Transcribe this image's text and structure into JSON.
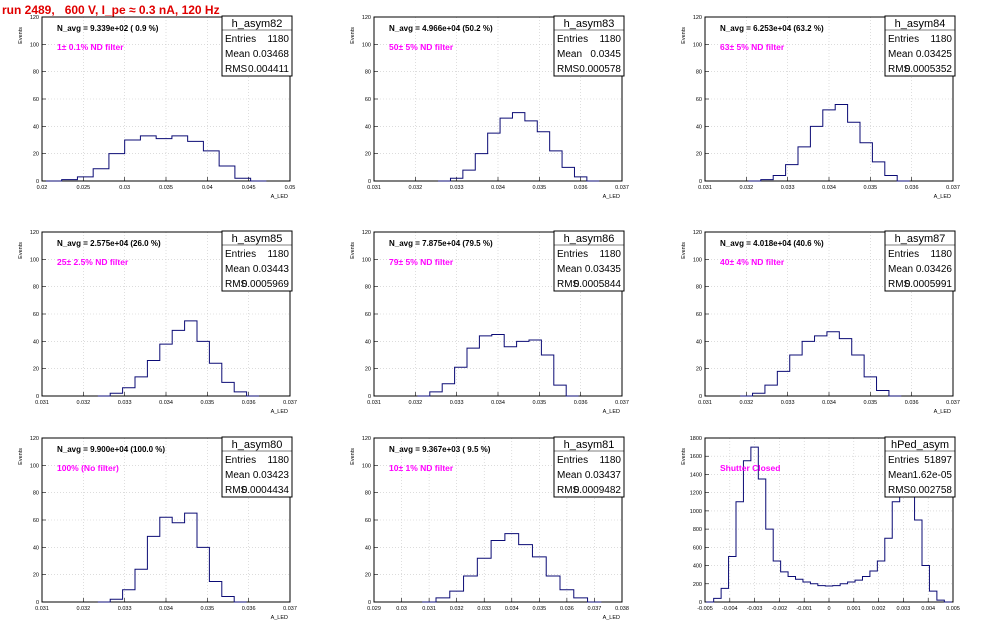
{
  "header": {
    "run_title": "run 2489,   600 V, I_pe ≈ 0.3 nA, 120 Hz"
  },
  "labels": {
    "entries": "Entries",
    "mean": "Mean",
    "rms": "RMS"
  },
  "colors": {
    "histogram": "#0b0b75",
    "note": "#ff00ff",
    "title": "#e00000"
  },
  "chart_data": [
    {
      "type": "histogram",
      "name": "h_asym82",
      "entries": "1180",
      "mean": "0.03468",
      "rms": "0.004411",
      "n_avg": "N_avg = 9.339e+02 ( 0.9 %)",
      "note": "1± 0.1% ND filter",
      "xlabel": "A_LED",
      "ylabel": "Events",
      "xlim": [
        0.0185,
        0.05
      ],
      "ylim": [
        0,
        120
      ],
      "xticks": [
        "0.02",
        "0.025",
        "0.03",
        "0.035",
        "0.04",
        "0.045",
        "0.05"
      ],
      "yticks": [
        "0",
        "20",
        "40",
        "60",
        "80",
        "100",
        "120"
      ],
      "x": [
        0.02,
        0.022,
        0.024,
        0.026,
        0.028,
        0.03,
        0.032,
        0.034,
        0.036,
        0.038,
        0.04,
        0.042,
        0.044,
        0.046
      ],
      "y": [
        0,
        1,
        3,
        9,
        20,
        30,
        33,
        31,
        33,
        29,
        22,
        11,
        2,
        0
      ]
    },
    {
      "type": "histogram",
      "name": "h_asym83",
      "entries": "1180",
      "mean": "0.0345",
      "rms": "0.000578",
      "n_avg": "N_avg = 4.966e+04 (50.2 %)",
      "note": "50± 5% ND filter",
      "xlabel": "A_LED",
      "ylabel": "Events",
      "xlim": [
        0.031,
        0.037
      ],
      "ylim": [
        0,
        120
      ],
      "xticks": [
        "0.031",
        "0.032",
        "0.033",
        "0.034",
        "0.035",
        "0.036",
        "0.037"
      ],
      "yticks": [
        "0",
        "20",
        "40",
        "60",
        "80",
        "100",
        "120"
      ],
      "x": [
        0.0327,
        0.033,
        0.0333,
        0.0336,
        0.0339,
        0.0342,
        0.0345,
        0.0348,
        0.0351,
        0.0354,
        0.0357,
        0.036,
        0.0363
      ],
      "y": [
        0,
        2,
        8,
        20,
        35,
        46,
        50,
        44,
        36,
        22,
        10,
        3,
        0
      ]
    },
    {
      "type": "histogram",
      "name": "h_asym84",
      "entries": "1180",
      "mean": "0.03425",
      "rms": "0.0005352",
      "n_avg": "N_avg = 6.253e+04 (63.2 %)",
      "note": "63± 5% ND filter",
      "xlabel": "A_LED",
      "ylabel": "Events",
      "xlim": [
        0.031,
        0.037
      ],
      "ylim": [
        0,
        120
      ],
      "xticks": [
        "0.031",
        "0.032",
        "0.033",
        "0.034",
        "0.035",
        "0.036",
        "0.037"
      ],
      "yticks": [
        "0",
        "20",
        "40",
        "60",
        "80",
        "100",
        "120"
      ],
      "x": [
        0.0322,
        0.0325,
        0.0328,
        0.0331,
        0.0334,
        0.0337,
        0.034,
        0.0343,
        0.0346,
        0.0349,
        0.0352,
        0.0355,
        0.0358
      ],
      "y": [
        0,
        1,
        4,
        12,
        25,
        40,
        52,
        56,
        43,
        28,
        14,
        4,
        0
      ]
    },
    {
      "type": "histogram",
      "name": "h_asym85",
      "entries": "1180",
      "mean": "0.03443",
      "rms": "0.0005969",
      "n_avg": "N_avg = 2.575e+04 (26.0 %)",
      "note": "25± 2.5% ND filter",
      "xlabel": "A_LED",
      "ylabel": "Events",
      "xlim": [
        0.031,
        0.037
      ],
      "ylim": [
        0,
        120
      ],
      "xticks": [
        "0.031",
        "0.032",
        "0.033",
        "0.034",
        "0.035",
        "0.036",
        "0.037"
      ],
      "yticks": [
        "0",
        "20",
        "40",
        "60",
        "80",
        "100",
        "120"
      ],
      "x": [
        0.0325,
        0.0328,
        0.0331,
        0.0334,
        0.0337,
        0.034,
        0.0343,
        0.0346,
        0.0349,
        0.0352,
        0.0355,
        0.0358,
        0.0361
      ],
      "y": [
        0,
        2,
        6,
        14,
        26,
        38,
        48,
        55,
        40,
        24,
        10,
        3,
        0
      ]
    },
    {
      "type": "histogram",
      "name": "h_asym86",
      "entries": "1180",
      "mean": "0.03435",
      "rms": "0.0005844",
      "n_avg": "N_avg = 7.875e+04 (79.5 %)",
      "note": "79± 5% ND filter",
      "xlabel": "A_LED",
      "ylabel": "Events",
      "xlim": [
        0.031,
        0.037
      ],
      "ylim": [
        0,
        120
      ],
      "xticks": [
        "0.031",
        "0.032",
        "0.033",
        "0.034",
        "0.035",
        "0.036",
        "0.037"
      ],
      "yticks": [
        "0",
        "20",
        "40",
        "60",
        "80",
        "100",
        "120"
      ],
      "x": [
        0.0322,
        0.0325,
        0.0328,
        0.0331,
        0.0334,
        0.0337,
        0.034,
        0.0343,
        0.0346,
        0.0349,
        0.0352,
        0.0355,
        0.0358
      ],
      "y": [
        0,
        3,
        9,
        21,
        35,
        44,
        45,
        36,
        40,
        41,
        30,
        8,
        0
      ]
    },
    {
      "type": "histogram",
      "name": "h_asym87",
      "entries": "1180",
      "mean": "0.03426",
      "rms": "0.0005991",
      "n_avg": "N_avg = 4.018e+04 (40.6 %)",
      "note": "40± 4% ND filter",
      "xlabel": "A_LED",
      "ylabel": "Events",
      "xlim": [
        0.031,
        0.037
      ],
      "ylim": [
        0,
        120
      ],
      "xticks": [
        "0.031",
        "0.032",
        "0.033",
        "0.034",
        "0.035",
        "0.036",
        "0.037"
      ],
      "yticks": [
        "0",
        "20",
        "40",
        "60",
        "80",
        "100",
        "120"
      ],
      "x": [
        0.032,
        0.0323,
        0.0326,
        0.0329,
        0.0332,
        0.0335,
        0.0338,
        0.0341,
        0.0344,
        0.0347,
        0.035,
        0.0353,
        0.0356
      ],
      "y": [
        0,
        2,
        8,
        18,
        30,
        40,
        44,
        47,
        42,
        30,
        14,
        4,
        0
      ]
    },
    {
      "type": "histogram",
      "name": "h_asym80",
      "entries": "1180",
      "mean": "0.03423",
      "rms": "0.0004434",
      "n_avg": "N_avg = 9.900e+04 (100.0 %)",
      "note": "100% (No filter)",
      "xlabel": "A_LED",
      "ylabel": "Events",
      "xlim": [
        0.031,
        0.037
      ],
      "ylim": [
        0,
        120
      ],
      "xticks": [
        "0.031",
        "0.032",
        "0.033",
        "0.034",
        "0.035",
        "0.036",
        "0.037"
      ],
      "yticks": [
        "0",
        "20",
        "40",
        "60",
        "80",
        "100",
        "120"
      ],
      "x": [
        0.0325,
        0.0328,
        0.0331,
        0.0334,
        0.0337,
        0.034,
        0.0343,
        0.0346,
        0.0349,
        0.0352,
        0.0355,
        0.0358
      ],
      "y": [
        0,
        2,
        9,
        24,
        48,
        62,
        58,
        65,
        40,
        15,
        4,
        0
      ]
    },
    {
      "type": "histogram",
      "name": "h_asym81",
      "entries": "1180",
      "mean": "0.03437",
      "rms": "0.0009482",
      "n_avg": "N_avg = 9.367e+03 ( 9.5 %)",
      "note": "10± 1% ND filter",
      "xlabel": "A_LED",
      "ylabel": "Events",
      "xlim": [
        0.029,
        0.038
      ],
      "ylim": [
        0,
        120
      ],
      "xticks": [
        "0.029",
        "0.03",
        "0.031",
        "0.032",
        "0.033",
        "0.034",
        "0.035",
        "0.036",
        "0.037",
        "0.038"
      ],
      "yticks": [
        "0",
        "20",
        "40",
        "60",
        "80",
        "100",
        "120"
      ],
      "x": [
        0.031,
        0.0315,
        0.032,
        0.0325,
        0.033,
        0.0335,
        0.034,
        0.0345,
        0.035,
        0.0355,
        0.036,
        0.0365,
        0.037
      ],
      "y": [
        0,
        3,
        8,
        19,
        32,
        45,
        50,
        42,
        33,
        19,
        9,
        3,
        0
      ]
    },
    {
      "type": "histogram",
      "name": "hPed_asym",
      "entries": "51897",
      "mean": "1.62e-05",
      "rms": "0.002758",
      "n_avg": "",
      "note": "Shutter Closed",
      "xlabel": "",
      "ylabel": "Events",
      "xlim": [
        -0.005,
        0.005
      ],
      "ylim": [
        0,
        1800
      ],
      "xticks": [
        "-0.005",
        "-0.004",
        "-0.003",
        "-0.002",
        "-0.001",
        "0",
        "0.001",
        "0.002",
        "0.003",
        "0.004",
        "0.005"
      ],
      "yticks": [
        "0",
        "200",
        "400",
        "600",
        "800",
        "1000",
        "1200",
        "1400",
        "1600",
        "1800"
      ],
      "x": [
        -0.0048,
        -0.0045,
        -0.0042,
        -0.0039,
        -0.0036,
        -0.0033,
        -0.003,
        -0.0027,
        -0.0024,
        -0.0021,
        -0.0018,
        -0.0015,
        -0.0012,
        -0.0009,
        -0.0006,
        -0.0003,
        0.0,
        0.0003,
        0.0006,
        0.0009,
        0.0012,
        0.0015,
        0.0018,
        0.0021,
        0.0024,
        0.0027,
        0.003,
        0.0033,
        0.0036,
        0.0039,
        0.0042,
        0.0045,
        0.0048
      ],
      "y": [
        0,
        40,
        150,
        500,
        1100,
        1550,
        1700,
        1350,
        800,
        450,
        330,
        280,
        250,
        220,
        200,
        180,
        175,
        180,
        200,
        220,
        240,
        280,
        340,
        450,
        700,
        1100,
        1500,
        1380,
        900,
        400,
        120,
        20,
        0
      ]
    }
  ]
}
